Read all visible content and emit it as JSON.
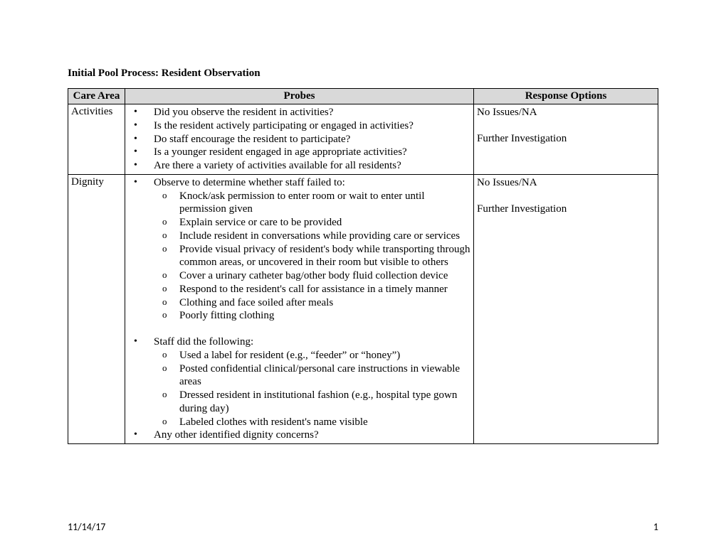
{
  "title": "Initial Pool Process: Resident Observation",
  "columns": {
    "care_area": "Care Area",
    "probes": "Probes",
    "response": "Response Options"
  },
  "rows": [
    {
      "care_area": "Activities",
      "probes": {
        "bullets": [
          "Did you observe the resident in activities?",
          "Is the resident actively participating or engaged in activities?",
          "Do staff encourage the resident to participate?",
          "Is a younger resident engaged in age appropriate activities?",
          "Are there a variety of activities available for all residents?"
        ]
      },
      "responses": [
        "No Issues/NA",
        "Further Investigation"
      ]
    },
    {
      "care_area": "Dignity",
      "probes": {
        "group1_lead": "Observe to determine whether staff failed to:",
        "group1_subs": [
          "Knock/ask permission to enter room or wait to enter until permission given",
          "Explain service or care to be provided",
          "Include resident in conversations while providing care or services",
          "Provide visual privacy of resident's body while transporting through common areas, or uncovered in their room but visible to others",
          "Cover a urinary catheter bag/other body fluid collection device",
          "Respond to the resident's call for assistance in a timely manner",
          "Clothing and face soiled after meals",
          "Poorly fitting clothing"
        ],
        "group2_lead": "Staff did the following:",
        "group2_subs": [
          "Used a label for resident (e.g., “feeder” or “honey”)",
          "Posted confidential clinical/personal care instructions in viewable areas",
          "Dressed resident in institutional fashion (e.g., hospital type gown during day)",
          "Labeled clothes with resident's name visible"
        ],
        "final_bullet": "Any other identified dignity concerns?"
      },
      "responses": [
        "No Issues/NA",
        "Further Investigation"
      ]
    }
  ],
  "footer": {
    "date": "11/14/17",
    "page": "1"
  }
}
